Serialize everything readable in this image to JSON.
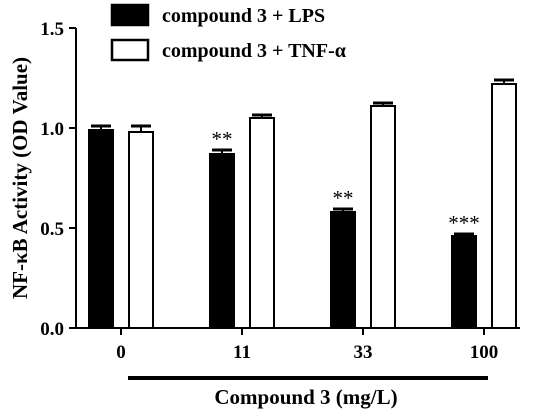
{
  "chart_data": {
    "type": "bar",
    "ylabel": "NF-κB Activity (OD Value)",
    "xlabel": "Compound 3 (mg/L)",
    "ylim": [
      0,
      1.5
    ],
    "yticks": [
      0.0,
      0.5,
      1.0,
      1.5
    ],
    "ytick_labels": [
      "0.0",
      "0.5",
      "1.0",
      "1.5"
    ],
    "categories": [
      "0",
      "11",
      "33",
      "100"
    ],
    "series": [
      {
        "name": "compound 3 + LPS",
        "fill": "#000000",
        "values": [
          0.99,
          0.87,
          0.58,
          0.46
        ],
        "errors": [
          0.02,
          0.02,
          0.015,
          0.01
        ],
        "annotations": [
          "",
          "**",
          "**",
          "***"
        ]
      },
      {
        "name": "compound 3 + TNF-α",
        "fill": "#ffffff",
        "values": [
          0.98,
          1.05,
          1.11,
          1.22
        ],
        "errors": [
          0.03,
          0.015,
          0.015,
          0.02
        ],
        "annotations": [
          "",
          "",
          "",
          ""
        ]
      }
    ],
    "legend_position": "top",
    "grid": false
  }
}
